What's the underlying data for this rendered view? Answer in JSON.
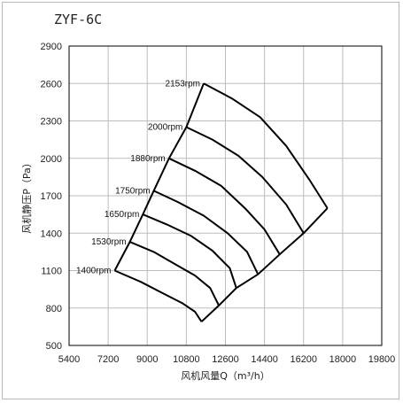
{
  "chart_data": {
    "type": "line",
    "title": "ZYF-6C",
    "xlabel": "风机风量Q（m³/h）",
    "ylabel": "风机静压P（Pa）",
    "xlim": [
      5400,
      19800
    ],
    "ylim": [
      500,
      2900
    ],
    "xticks": [
      5400,
      7200,
      9000,
      10800,
      12600,
      14400,
      16200,
      18000,
      19800
    ],
    "yticks": [
      500,
      800,
      1100,
      1400,
      1700,
      2000,
      2300,
      2600,
      2900
    ],
    "grid": true,
    "series": [
      {
        "name": "2153rpm",
        "points": [
          [
            11600,
            2600
          ],
          [
            12900,
            2480
          ],
          [
            14200,
            2330
          ],
          [
            15400,
            2100
          ],
          [
            16500,
            1820
          ],
          [
            17300,
            1600
          ]
        ]
      },
      {
        "name": "2000rpm",
        "points": [
          [
            10800,
            2250
          ],
          [
            12000,
            2150
          ],
          [
            13200,
            2020
          ],
          [
            14300,
            1850
          ],
          [
            15400,
            1630
          ],
          [
            16200,
            1400
          ]
        ]
      },
      {
        "name": "1880rpm",
        "points": [
          [
            10000,
            2000
          ],
          [
            11200,
            1900
          ],
          [
            12400,
            1780
          ],
          [
            13500,
            1600
          ],
          [
            14400,
            1430
          ],
          [
            15100,
            1230
          ]
        ]
      },
      {
        "name": "1750rpm",
        "points": [
          [
            9300,
            1740
          ],
          [
            10400,
            1650
          ],
          [
            11600,
            1540
          ],
          [
            12700,
            1400
          ],
          [
            13600,
            1250
          ],
          [
            14100,
            1070
          ]
        ]
      },
      {
        "name": "1650rpm",
        "points": [
          [
            8800,
            1550
          ],
          [
            9900,
            1470
          ],
          [
            11000,
            1380
          ],
          [
            12000,
            1260
          ],
          [
            12800,
            1120
          ],
          [
            13100,
            960
          ]
        ]
      },
      {
        "name": "1530rpm",
        "points": [
          [
            8200,
            1330
          ],
          [
            9300,
            1250
          ],
          [
            10300,
            1150
          ],
          [
            11200,
            1060
          ],
          [
            11900,
            960
          ],
          [
            12300,
            820
          ]
        ]
      },
      {
        "name": "1400rpm",
        "points": [
          [
            7500,
            1100
          ],
          [
            8700,
            1010
          ],
          [
            9700,
            920
          ],
          [
            10600,
            840
          ],
          [
            11200,
            770
          ],
          [
            11500,
            690
          ]
        ]
      },
      {
        "name": "",
        "points": [
          [
            7500,
            1100
          ],
          [
            8200,
            1330
          ],
          [
            8800,
            1550
          ],
          [
            9300,
            1740
          ],
          [
            10000,
            2000
          ],
          [
            10800,
            2250
          ],
          [
            11600,
            2600
          ]
        ]
      },
      {
        "name": "",
        "points": [
          [
            11500,
            690
          ],
          [
            12300,
            820
          ],
          [
            13100,
            960
          ],
          [
            14100,
            1070
          ],
          [
            15100,
            1230
          ],
          [
            16200,
            1400
          ],
          [
            17300,
            1600
          ]
        ]
      }
    ]
  }
}
